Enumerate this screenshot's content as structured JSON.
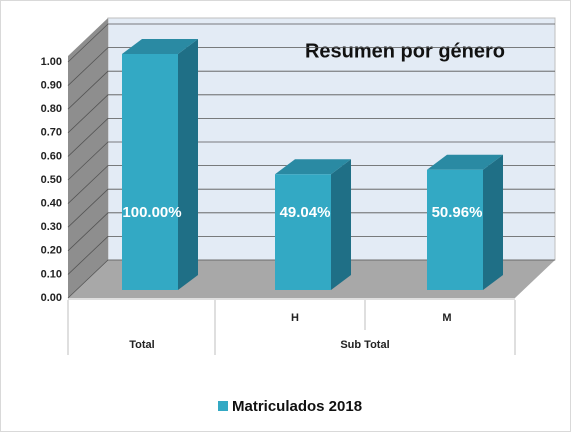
{
  "chart_data": {
    "type": "bar3d",
    "title": "Resumen por género",
    "categories": [
      "Total",
      "H",
      "M"
    ],
    "category_group": "Sub Total",
    "series": [
      {
        "name": "Matriculados 2018",
        "color": "#33a9c4",
        "values": [
          1.0,
          0.4904,
          0.5096
        ],
        "value_labels": [
          "100.00%",
          "49.04%",
          "50.96%"
        ]
      }
    ],
    "ylim": [
      0,
      1
    ],
    "yticks": [
      {
        "value": 0,
        "label": "0.00"
      },
      {
        "value": 0.1,
        "label": "0.10"
      },
      {
        "value": 0.2,
        "label": "0.20"
      },
      {
        "value": 0.3,
        "label": "0.30"
      },
      {
        "value": 0.4,
        "label": "0.40"
      },
      {
        "value": 0.5,
        "label": "0.50"
      },
      {
        "value": 0.6,
        "label": "0.60"
      },
      {
        "value": 0.7,
        "label": "0.70"
      },
      {
        "value": 0.8,
        "label": "0.80"
      },
      {
        "value": 0.9,
        "label": "0.90"
      },
      {
        "value": 1,
        "label": "1.00"
      }
    ],
    "grid": true,
    "legend": "bottom"
  }
}
